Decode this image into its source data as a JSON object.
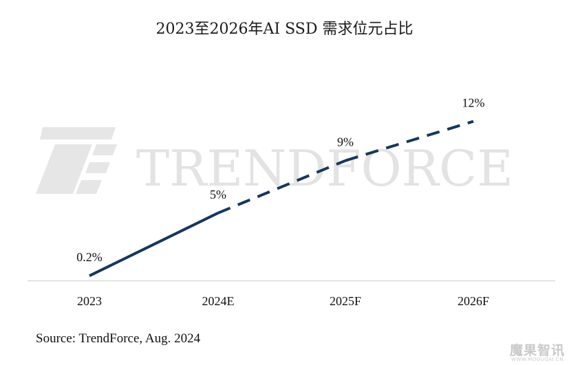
{
  "chart_data": {
    "type": "line",
    "title": "2023至2026年AI SSD 需求位元占比",
    "categories": [
      "2023",
      "2024E",
      "2025F",
      "2026F"
    ],
    "values": [
      0.2,
      5,
      9,
      12
    ],
    "data_labels": [
      "0.2%",
      "5%",
      "9%",
      "12%"
    ],
    "series_style": [
      "solid",
      "dashed",
      "dashed"
    ],
    "series_color": "#14375e",
    "ylim": [
      0,
      13.5
    ],
    "grid": false,
    "legend": "none",
    "source": "Source: TrendForce, Aug. 2024"
  },
  "watermark": {
    "text": "TRENDFORCE",
    "color": "#e3e3e3"
  },
  "corner_logo": {
    "text": "魔果智讯",
    "subtext": "WWW.MOGUOAI.CN"
  }
}
